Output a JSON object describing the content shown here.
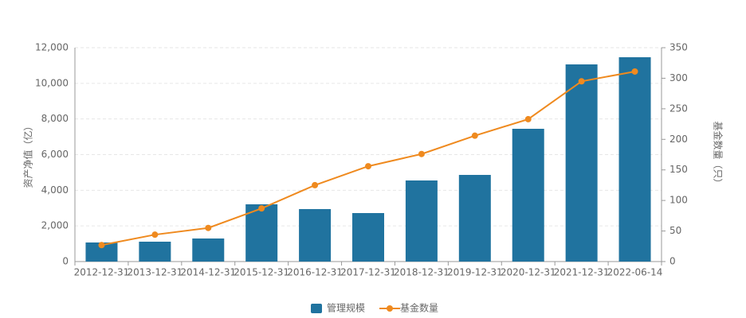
{
  "chart_data": {
    "type": "bar_line",
    "categories": [
      "2012-12-31",
      "2013-12-31",
      "2014-12-31",
      "2015-12-31",
      "2016-12-31",
      "2017-12-31",
      "2018-12-31",
      "2019-12-31",
      "2020-12-31",
      "2021-12-31",
      "2022-06-14"
    ],
    "y_label": "资产净值（亿）",
    "y2_label": "基金数量（只）",
    "ylim": [
      0,
      12000
    ],
    "yticks": [
      0,
      {
        "value": 2000,
        "label": "2,000"
      },
      {
        "value": 4000,
        "label": "4,000"
      },
      {
        "value": 6000,
        "label": "6,000"
      },
      {
        "value": 8000,
        "label": "8,000"
      },
      {
        "value": 10000,
        "label": "10,000"
      },
      {
        "value": 12000,
        "label": "12,000"
      }
    ],
    "y2lim": [
      0,
      350
    ],
    "y2ticks": [
      0,
      50,
      100,
      150,
      200,
      250,
      300,
      350
    ],
    "grid": true,
    "legend": "bottom",
    "series": [
      {
        "name": "管理规模",
        "type": "bar",
        "color": "#20739f",
        "values": [
          1070,
          1115,
          1294,
          3212,
          2944,
          2721,
          4550,
          4862,
          7450,
          11063,
          11465
        ]
      },
      {
        "name": "基金数量",
        "type": "line",
        "axis": "y2",
        "color": "#ef8a1f",
        "values": [
          27,
          44,
          55,
          87,
          125,
          156,
          176,
          206,
          233,
          295,
          311
        ]
      }
    ]
  }
}
